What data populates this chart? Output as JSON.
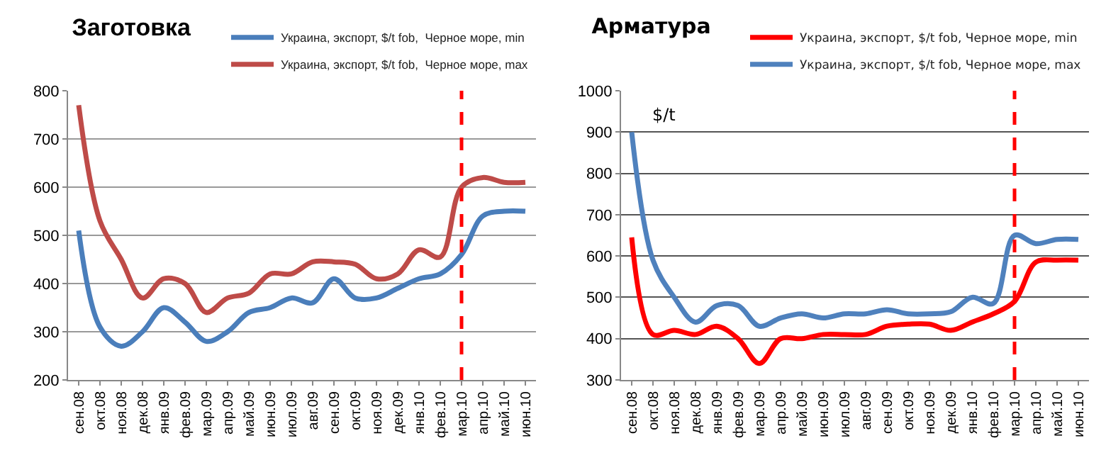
{
  "chart_data": [
    {
      "type": "line",
      "title": "Заготовка",
      "categories": [
        "сен.08",
        "окт.08",
        "ноя.08",
        "дек.08",
        "янв.09",
        "фев.09",
        "мар.09",
        "апр.09",
        "май.09",
        "июн.09",
        "июл.09",
        "авг.09",
        "сен.09",
        "окт.09",
        "ноя.09",
        "дек.09",
        "янв.10",
        "фев.10",
        "мар.10",
        "апр.10",
        "май.10",
        "июн.10"
      ],
      "series": [
        {
          "name": "Украина, экспорт, $/t fob,  Черное море, min",
          "color": "#4a7ebb",
          "values": [
            510,
            310,
            270,
            300,
            350,
            320,
            280,
            300,
            340,
            350,
            370,
            360,
            410,
            370,
            370,
            390,
            410,
            420,
            460,
            540,
            550,
            550
          ]
        },
        {
          "name": "Украина, экспорт, $/t fob,  Черное море, max",
          "color": "#be4b48",
          "values": [
            770,
            530,
            450,
            370,
            410,
            400,
            340,
            370,
            380,
            420,
            420,
            445,
            445,
            440,
            410,
            420,
            470,
            455,
            600,
            620,
            610,
            610
          ]
        }
      ],
      "ylim": [
        200,
        800
      ],
      "yticks": [
        200,
        300,
        400,
        500,
        600,
        700,
        800
      ],
      "grid": "y",
      "legend": "top right",
      "marker": "none",
      "line_style": "solid",
      "ref_lines": [
        {
          "axis": "x",
          "value": "мар.10",
          "color": "#ff0000",
          "line_style": "dashed"
        }
      ]
    },
    {
      "type": "line",
      "title": "Арматура",
      "categories": [
        "сен.08",
        "окт.08",
        "ноя.08",
        "дек.08",
        "янв.09",
        "фев.09",
        "мар.09",
        "апр.09",
        "май.09",
        "июн.09",
        "июл.09",
        "авг.09",
        "сен.09",
        "окт.09",
        "ноя.09",
        "дек.09",
        "янв.10",
        "фев.10",
        "мар.10",
        "апр.10",
        "май.10",
        "июн.10"
      ],
      "series": [
        {
          "name": "Украина, экспорт, $/t fob, Черное море, min",
          "color": "#ff0000",
          "values": [
            645,
            410,
            420,
            410,
            430,
            400,
            340,
            400,
            400,
            410,
            410,
            410,
            430,
            435,
            435,
            420,
            440,
            460,
            490,
            585,
            590,
            590
          ]
        },
        {
          "name": "Украина, экспорт, $/t fob, Черное море, max",
          "color": "#4f81bd",
          "values": [
            900,
            590,
            500,
            440,
            480,
            480,
            430,
            450,
            460,
            450,
            460,
            460,
            470,
            460,
            460,
            465,
            500,
            485,
            650,
            630,
            640,
            640
          ]
        }
      ],
      "annotations": [
        "$/t"
      ],
      "ylim": [
        300,
        1000
      ],
      "yticks": [
        300,
        400,
        500,
        600,
        700,
        800,
        900,
        1000
      ],
      "grid": "y",
      "legend": "top right",
      "marker": "none",
      "line_style": "solid",
      "ref_lines": [
        {
          "axis": "x",
          "value": "мар.10",
          "color": "#ff0000",
          "line_style": "dashed"
        }
      ]
    }
  ]
}
